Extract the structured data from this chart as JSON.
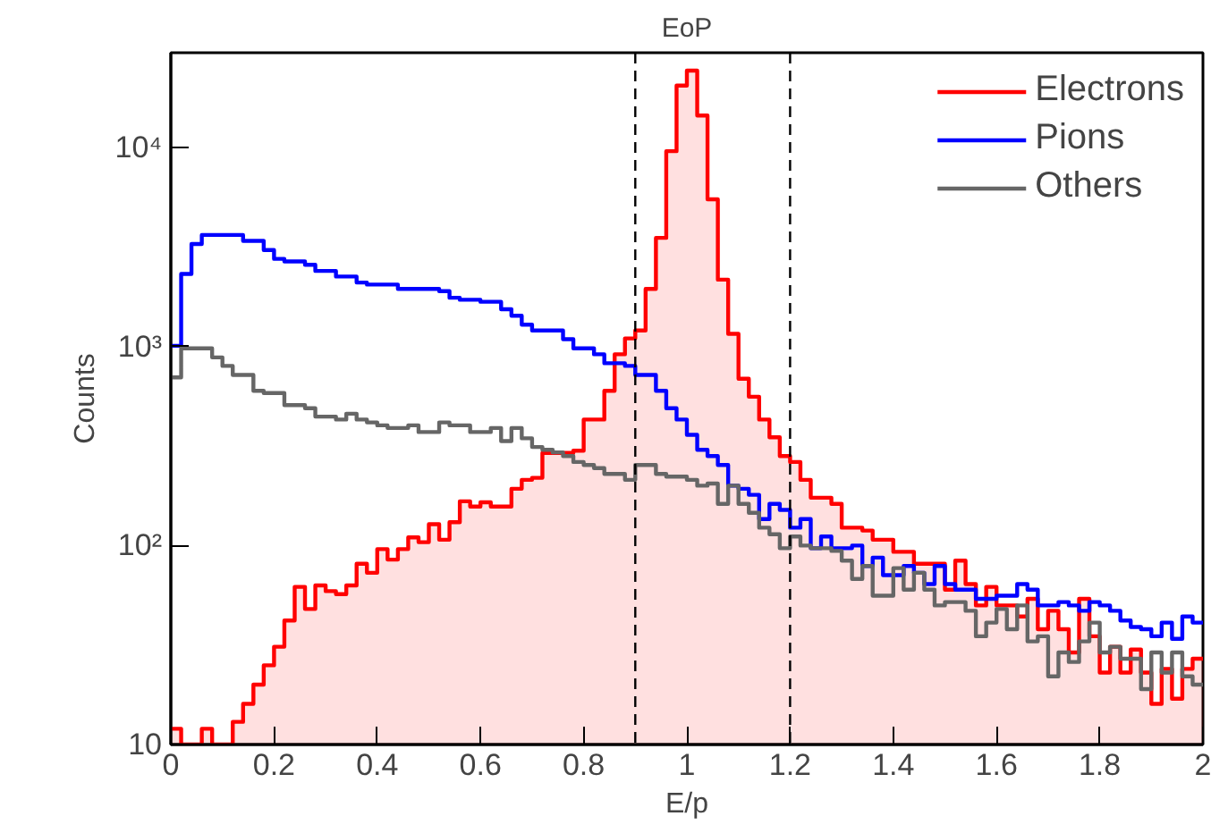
{
  "chart_data": {
    "type": "histogram",
    "title": "EoP",
    "xlabel": "E/p",
    "ylabel": "Counts",
    "bins": [
      0,
      0.02,
      0.04,
      0.06,
      0.08,
      0.1,
      0.12,
      0.14,
      0.16,
      0.18,
      0.2,
      0.22,
      0.24,
      0.26,
      0.28,
      0.3,
      0.32,
      0.34,
      0.36,
      0.38,
      0.4,
      0.42,
      0.44,
      0.46,
      0.48,
      0.5,
      0.52,
      0.54,
      0.56,
      0.58,
      0.6,
      0.62,
      0.64,
      0.66,
      0.68,
      0.7,
      0.72,
      0.74,
      0.76,
      0.78,
      0.8,
      0.82,
      0.84,
      0.86,
      0.88,
      0.9,
      0.92,
      0.94,
      0.96,
      0.98,
      1,
      1.02,
      1.04,
      1.06,
      1.08,
      1.1,
      1.12,
      1.14,
      1.16,
      1.18,
      1.2,
      1.22,
      1.24,
      1.26,
      1.28,
      1.3,
      1.32,
      1.34,
      1.36,
      1.38,
      1.4,
      1.42,
      1.44,
      1.46,
      1.48,
      1.5,
      1.52,
      1.54,
      1.56,
      1.58,
      1.6,
      1.62,
      1.64,
      1.66,
      1.68,
      1.7,
      1.72,
      1.74,
      1.76,
      1.78,
      1.8,
      1.82,
      1.84,
      1.86,
      1.88,
      1.9,
      1.92,
      1.94,
      1.96,
      1.98,
      2
    ],
    "series": [
      {
        "name": "Electrons",
        "color": "#ff0000",
        "values": [
          12,
          10,
          10,
          12,
          10,
          10,
          13,
          16,
          20,
          25,
          31,
          42,
          62,
          48,
          63,
          59,
          57,
          63,
          81,
          73,
          96,
          85,
          96,
          110,
          104,
          128,
          107,
          131,
          167,
          157,
          165,
          157,
          157,
          193,
          214,
          219,
          292,
          292,
          292,
          300,
          430,
          430,
          600,
          915,
          1100,
          1205,
          1950,
          3520,
          9600,
          20500,
          24400,
          14500,
          5500,
          2170,
          1160,
          690,
          560,
          430,
          350,
          282,
          263,
          214,
          174,
          174,
          162,
          123,
          123,
          119,
          107,
          107,
          93,
          93,
          81,
          81,
          81,
          60,
          84,
          64,
          50,
          62,
          50,
          50,
          44,
          54,
          38,
          47,
          38,
          29,
          54,
          35,
          23,
          31,
          23,
          30,
          23,
          16,
          24,
          17,
          24,
          27
        ]
      },
      {
        "name": "Pions",
        "color": "#0000ff",
        "values": [
          1010,
          2320,
          3280,
          3640,
          3640,
          3640,
          3640,
          3400,
          3400,
          3060,
          2760,
          2680,
          2680,
          2580,
          2400,
          2400,
          2250,
          2250,
          2100,
          2050,
          2050,
          2050,
          1950,
          1950,
          1950,
          1950,
          1900,
          1760,
          1720,
          1720,
          1680,
          1680,
          1540,
          1430,
          1290,
          1205,
          1205,
          1205,
          1090,
          980,
          980,
          915,
          825,
          825,
          800,
          720,
          720,
          600,
          490,
          430,
          360,
          303,
          282,
          254,
          200,
          193,
          180,
          136,
          162,
          151,
          123,
          136,
          97,
          111,
          97,
          97,
          100,
          79,
          87,
          71,
          71,
          79,
          73,
          64,
          79,
          64,
          60,
          60,
          54,
          54,
          56,
          56,
          64,
          60,
          50,
          50,
          52,
          50,
          47,
          52,
          50,
          47,
          42,
          39,
          38,
          35,
          41,
          34,
          44,
          41
        ]
      },
      {
        "name": "Others",
        "color": "#666666",
        "values": [
          700,
          980,
          980,
          980,
          883,
          800,
          720,
          720,
          600,
          584,
          584,
          508,
          508,
          490,
          445,
          445,
          430,
          460,
          430,
          416,
          402,
          390,
          390,
          402,
          372,
          372,
          416,
          402,
          402,
          372,
          372,
          390,
          335,
          390,
          346,
          313,
          303,
          294,
          282,
          263,
          254,
          245,
          229,
          229,
          214,
          254,
          254,
          229,
          222,
          222,
          214,
          200,
          205,
          162,
          200,
          162,
          146,
          123,
          114,
          97,
          111,
          100,
          97,
          97,
          94,
          84,
          68,
          79,
          56,
          56,
          77,
          60,
          73,
          60,
          50,
          52,
          52,
          47,
          35,
          41,
          48,
          38,
          50,
          33,
          35,
          22,
          29,
          26,
          33,
          41,
          29,
          31,
          27,
          27,
          19,
          29,
          23,
          29,
          22,
          20
        ]
      }
    ],
    "log": "y",
    "xlim": [
      0,
      2
    ],
    "ylim": [
      10,
      30000
    ],
    "xticks": [
      0,
      0.2,
      0.4,
      0.6,
      0.8,
      1,
      1.2,
      1.4,
      1.6,
      1.8,
      2
    ],
    "yticks": [
      10,
      {
        "value": 100,
        "label": "10²"
      },
      {
        "value": 1000,
        "label": "10³"
      },
      {
        "value": 10000,
        "label": "10⁴"
      }
    ],
    "ref_lines": [
      {
        "axis": "x",
        "value": 0.9,
        "color": "#000000",
        "line_style": "dashed"
      },
      {
        "axis": "x",
        "value": 1.2,
        "color": "#000000",
        "line_style": "dashed"
      }
    ],
    "grid": false,
    "legend": "top right",
    "line_style": "solid"
  }
}
